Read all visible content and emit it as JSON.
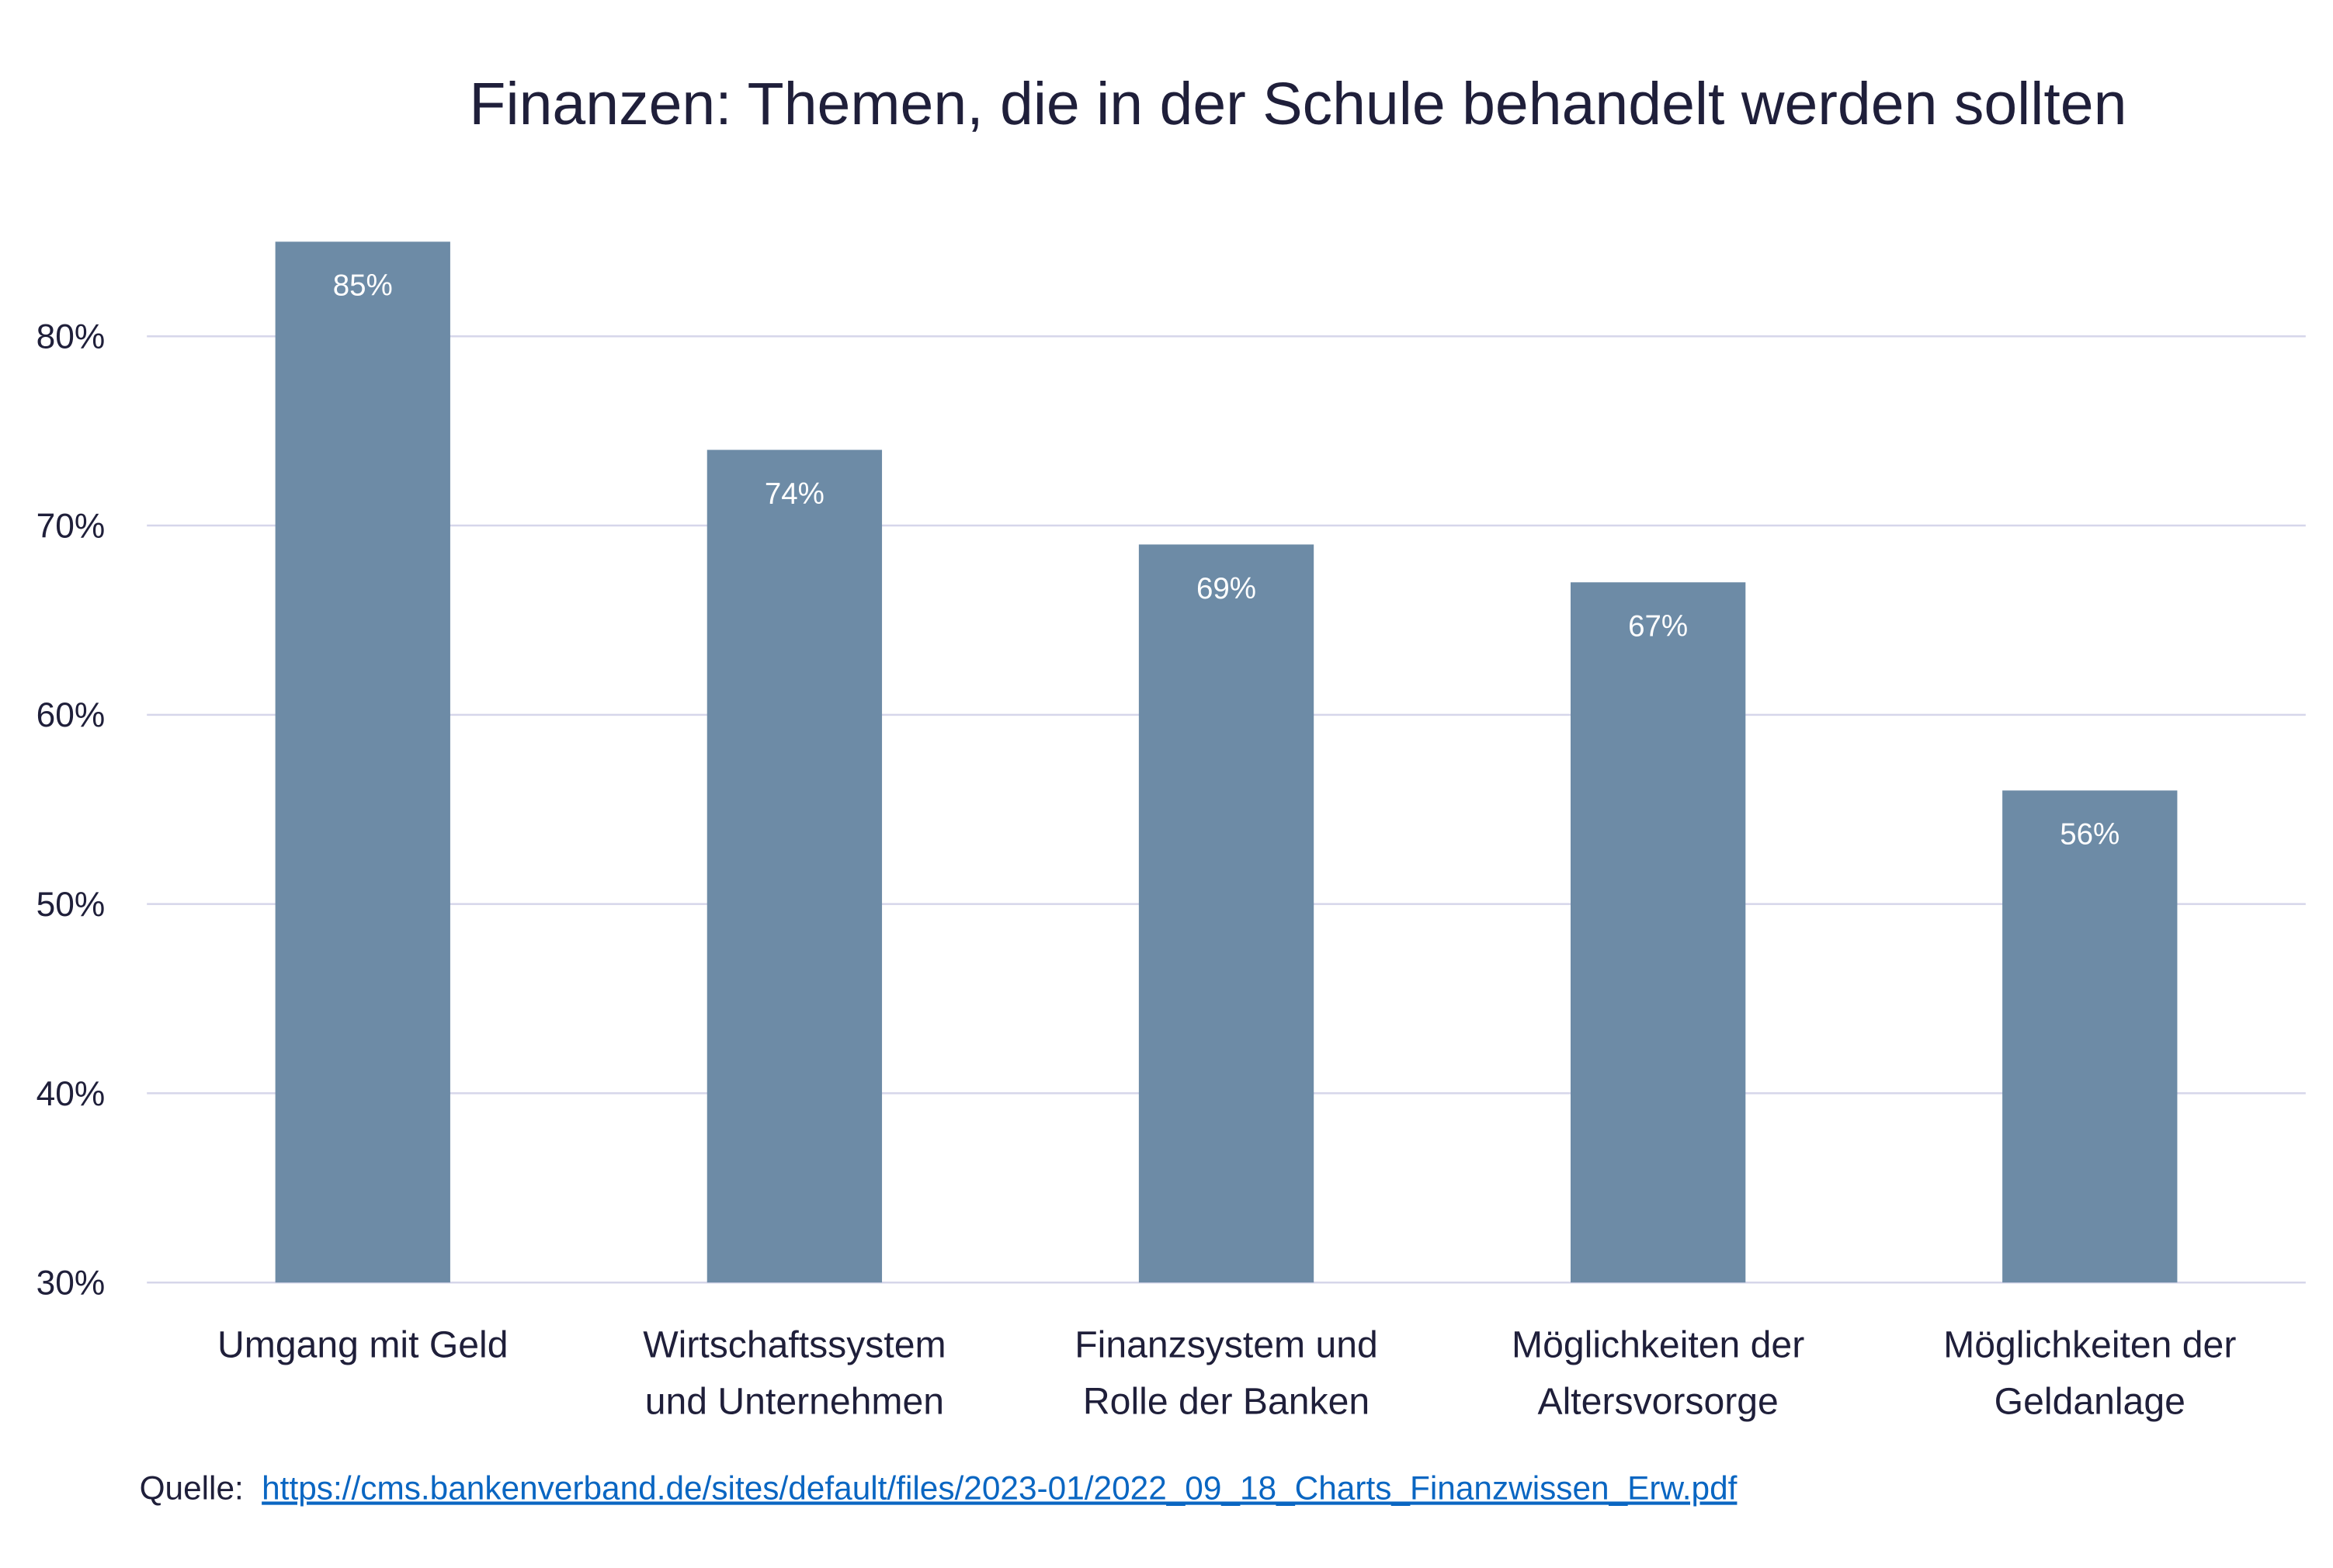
{
  "chart_data": {
    "type": "bar",
    "title": "Finanzen: Themen, die in der Schule behandelt werden sollten",
    "categories": [
      [
        "Umgang mit Geld"
      ],
      [
        "Wirtschaftssystem",
        "und Unternehmen"
      ],
      [
        "Finanzsystem und",
        "Rolle der Banken"
      ],
      [
        "Möglichkeiten der",
        "Altersvorsorge"
      ],
      [
        "Möglichkeiten der",
        "Geldanlage"
      ]
    ],
    "values": [
      85,
      74,
      69,
      67,
      56
    ],
    "data_labels": [
      "85%",
      "74%",
      "69%",
      "67%",
      "56%"
    ],
    "ylim": [
      30,
      85
    ],
    "yticks": [
      30,
      40,
      50,
      60,
      70,
      80
    ],
    "ytick_labels": [
      "30%",
      "40%",
      "50%",
      "60%",
      "70%",
      "80%"
    ],
    "xlabel": "",
    "ylabel": "",
    "grid": true,
    "legend": "none",
    "bar_color": "#6d8ba6",
    "grid_color": "#d6d6ea",
    "text_color": "#1f1f3a"
  },
  "source": {
    "label": "Quelle:",
    "link_text": "https://cms.bankenverband.de/sites/default/files/2023-01/2022_09_18_Charts_Finanzwissen_Erw.pdf",
    "link_color": "#0a66c2"
  }
}
